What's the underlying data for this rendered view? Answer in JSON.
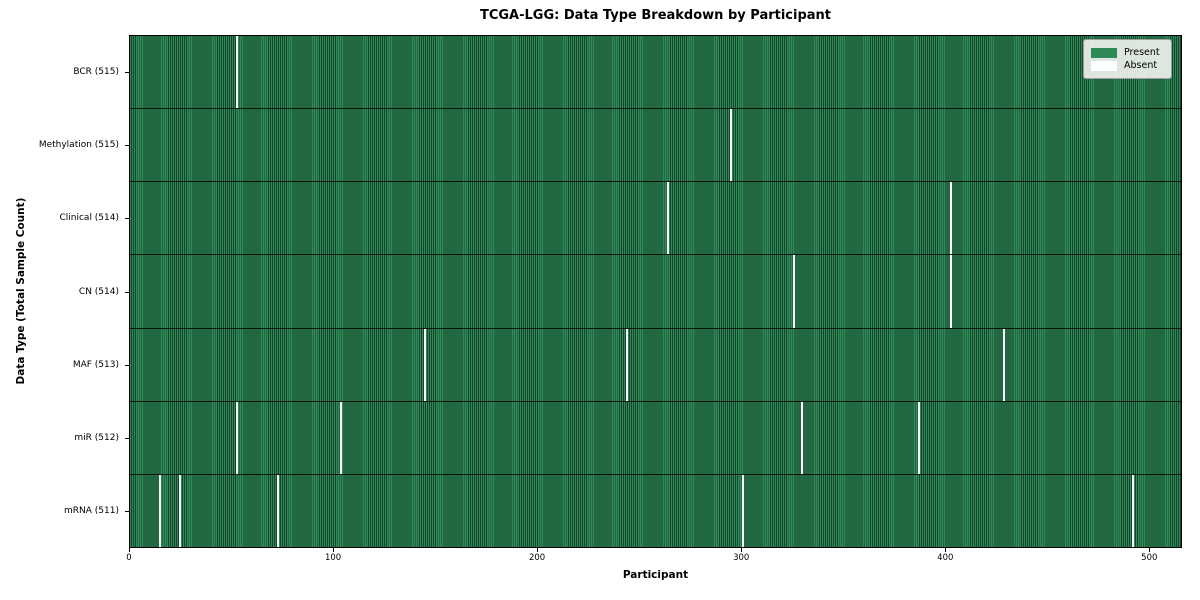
{
  "title": "TCGA-LGG: Data Type Breakdown by Participant",
  "x_axis": {
    "label": "Participant"
  },
  "y_axis": {
    "label": "Data Type (Total Sample Count)"
  },
  "legend": {
    "entries": [
      {
        "label": "Present",
        "color": "#2e8b57"
      },
      {
        "label": "Absent",
        "color": "#ffffff"
      }
    ]
  },
  "colors": {
    "present": "#2e8b57",
    "bar_edge": "#16452b",
    "absent": "#ffffff",
    "legend_bg": "#eceeec"
  },
  "chart_data": {
    "type": "heatmap",
    "title": "TCGA-LGG: Data Type Breakdown by Participant",
    "xlabel": "Participant",
    "ylabel": "Data Type (Total Sample Count)",
    "legend_entries": [
      "Present",
      "Absent"
    ],
    "legend_position": "upper right",
    "n_participants": 516,
    "xlim": [
      0,
      516
    ],
    "x_ticks": [
      0,
      100,
      200,
      300,
      400,
      500
    ],
    "rows_top_to_bottom": [
      {
        "label": "BCR (515)",
        "data_type": "BCR",
        "total_samples": 515,
        "absent_participants": [
          52
        ]
      },
      {
        "label": "Methylation (515)",
        "data_type": "Methylation",
        "total_samples": 515,
        "absent_participants": [
          294
        ]
      },
      {
        "label": "Clinical (514)",
        "data_type": "Clinical",
        "total_samples": 514,
        "absent_participants": [
          263,
          402
        ]
      },
      {
        "label": "CN (514)",
        "data_type": "CN",
        "total_samples": 514,
        "absent_participants": [
          325,
          402
        ]
      },
      {
        "label": "MAF (513)",
        "data_type": "MAF",
        "total_samples": 513,
        "absent_participants": [
          144,
          243,
          428
        ]
      },
      {
        "label": "miR (512)",
        "data_type": "miR",
        "total_samples": 512,
        "absent_participants": [
          52,
          103,
          329,
          386
        ]
      },
      {
        "label": "mRNA (511)",
        "data_type": "mRNA",
        "total_samples": 511,
        "absent_participants": [
          14,
          24,
          72,
          300,
          491
        ]
      }
    ]
  }
}
